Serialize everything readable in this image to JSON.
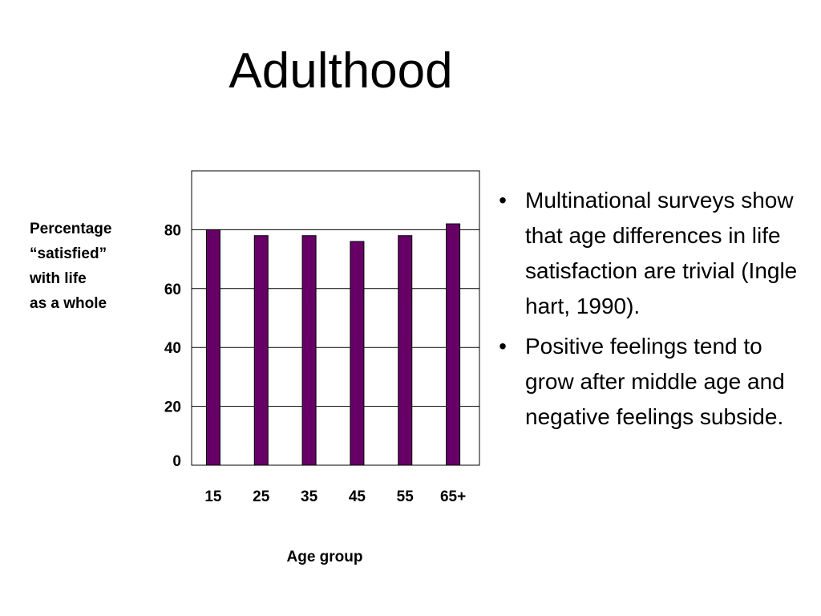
{
  "slide": {
    "title": "Adulthood"
  },
  "bullets": [
    {
      "marker": "•",
      "text": "Multinational surveys show that age differences in life satisfaction are trivial (Ingle hart, 1990)."
    },
    {
      "marker": "•",
      "text": "Positive feelings tend to grow after middle age and negative feelings subside."
    }
  ],
  "colors": {
    "bar_fill": "#660066",
    "gridline": "#000000",
    "plot_border": "#000000"
  },
  "chart_data": {
    "type": "bar",
    "categories": [
      "15",
      "25",
      "35",
      "45",
      "55",
      "65+"
    ],
    "values": [
      80,
      78,
      78,
      76,
      78,
      82
    ],
    "ylabel_lines": [
      "Percentage",
      "“satisfied”",
      "with life",
      "as a whole"
    ],
    "xlabel": "Age group",
    "yticks": [
      "0",
      "20",
      "40",
      "60",
      "80"
    ],
    "ylim": [
      0,
      100
    ],
    "grid": true,
    "legend": "none"
  }
}
